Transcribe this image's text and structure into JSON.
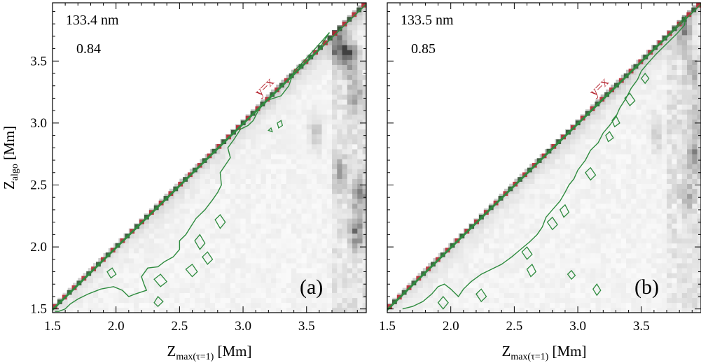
{
  "colors": {
    "contour": "#2e8b3e",
    "diagonal": "#b31e2a",
    "diagonal_label": "#b31e2a",
    "axis": "#000000",
    "background": "#ffffff"
  },
  "chart_data": [
    {
      "panel": "(a)",
      "type": "heatmap",
      "wavelength_label": "133.4 nm",
      "correlation_label": "0.84",
      "panel_label": "(a)",
      "line_label": "y=x",
      "xlabel": "Z",
      "xlabel_sub": "max(τ=1)",
      "xlabel_unit": " [Mm]",
      "ylabel": "Z",
      "ylabel_sub": "algo",
      "ylabel_unit": " [Mm]",
      "xlim": [
        1.5,
        3.97
      ],
      "ylim": [
        1.47,
        3.97
      ],
      "xticks": [
        "1.5",
        "2.0",
        "2.5",
        "3.0",
        "3.5"
      ],
      "yticks": [
        "1.5",
        "2.0",
        "2.5",
        "3.0",
        "3.5"
      ],
      "contour_level_description": "green contour",
      "contour_main": [
        [
          1.5,
          1.5
        ],
        [
          1.6,
          1.6
        ],
        [
          1.7,
          1.7
        ],
        [
          1.8,
          1.8
        ],
        [
          1.9,
          1.9
        ],
        [
          2.0,
          2.0
        ],
        [
          2.2,
          2.2
        ],
        [
          2.4,
          2.4
        ],
        [
          2.6,
          2.6
        ],
        [
          2.8,
          2.8
        ],
        [
          3.0,
          3.0
        ],
        [
          3.2,
          3.2
        ],
        [
          3.4,
          3.4
        ],
        [
          3.6,
          3.6
        ],
        [
          3.68,
          3.73
        ],
        [
          3.62,
          3.66
        ],
        [
          3.55,
          3.58
        ],
        [
          3.47,
          3.49
        ],
        [
          3.4,
          3.42
        ],
        [
          3.36,
          3.3
        ],
        [
          3.3,
          3.22
        ],
        [
          3.18,
          3.18
        ],
        [
          3.12,
          3.1
        ],
        [
          3.08,
          3.02
        ],
        [
          3.04,
          2.98
        ],
        [
          2.98,
          2.95
        ],
        [
          2.93,
          2.87
        ],
        [
          2.88,
          2.8
        ],
        [
          2.9,
          2.72
        ],
        [
          2.86,
          2.66
        ],
        [
          2.82,
          2.6
        ],
        [
          2.83,
          2.5
        ],
        [
          2.8,
          2.44
        ],
        [
          2.76,
          2.38
        ],
        [
          2.7,
          2.3
        ],
        [
          2.63,
          2.23
        ],
        [
          2.58,
          2.15
        ],
        [
          2.55,
          2.1
        ],
        [
          2.5,
          2.05
        ],
        [
          2.5,
          1.98
        ],
        [
          2.45,
          1.92
        ],
        [
          2.38,
          1.88
        ],
        [
          2.33,
          1.84
        ],
        [
          2.25,
          1.83
        ],
        [
          2.2,
          1.76
        ],
        [
          2.22,
          1.7
        ],
        [
          2.24,
          1.65
        ],
        [
          2.15,
          1.62
        ],
        [
          2.1,
          1.6
        ],
        [
          2.05,
          1.65
        ],
        [
          1.98,
          1.68
        ],
        [
          1.88,
          1.66
        ],
        [
          1.78,
          1.62
        ],
        [
          1.7,
          1.58
        ],
        [
          1.64,
          1.54
        ],
        [
          1.6,
          1.5
        ],
        [
          1.55,
          1.48
        ],
        [
          1.52,
          1.48
        ]
      ],
      "contour_islands": [
        [
          [
            3.27,
            3.0
          ],
          [
            3.3,
            3.02
          ],
          [
            3.31,
            2.98
          ],
          [
            3.28,
            2.96
          ],
          [
            3.27,
            3.0
          ]
        ],
        [
          [
            3.2,
            2.94
          ],
          [
            3.22,
            2.96
          ],
          [
            3.23,
            2.93
          ],
          [
            3.2,
            2.94
          ]
        ],
        [
          [
            2.78,
            2.22
          ],
          [
            2.82,
            2.26
          ],
          [
            2.86,
            2.2
          ],
          [
            2.82,
            2.15
          ],
          [
            2.78,
            2.22
          ]
        ],
        [
          [
            2.62,
            2.05
          ],
          [
            2.66,
            2.1
          ],
          [
            2.7,
            2.03
          ],
          [
            2.66,
            1.98
          ],
          [
            2.62,
            2.05
          ]
        ],
        [
          [
            2.68,
            1.92
          ],
          [
            2.72,
            1.96
          ],
          [
            2.76,
            1.9
          ],
          [
            2.72,
            1.86
          ],
          [
            2.68,
            1.92
          ]
        ],
        [
          [
            2.55,
            1.82
          ],
          [
            2.6,
            1.86
          ],
          [
            2.64,
            1.8
          ],
          [
            2.6,
            1.76
          ],
          [
            2.55,
            1.82
          ]
        ],
        [
          [
            2.3,
            1.74
          ],
          [
            2.35,
            1.78
          ],
          [
            2.4,
            1.72
          ],
          [
            2.35,
            1.68
          ],
          [
            2.3,
            1.74
          ]
        ],
        [
          [
            2.3,
            1.55
          ],
          [
            2.33,
            1.6
          ],
          [
            2.37,
            1.56
          ],
          [
            2.33,
            1.52
          ],
          [
            2.3,
            1.55
          ]
        ],
        [
          [
            1.93,
            1.8
          ],
          [
            1.97,
            1.83
          ],
          [
            2.0,
            1.78
          ],
          [
            1.96,
            1.75
          ],
          [
            1.93,
            1.8
          ]
        ]
      ],
      "density_hotspots": [
        [
          3.72,
          3.62,
          0.55
        ],
        [
          3.78,
          3.55,
          0.45
        ],
        [
          3.83,
          3.5,
          0.4
        ],
        [
          3.86,
          3.2,
          0.35
        ],
        [
          3.9,
          2.4,
          0.5
        ],
        [
          3.88,
          2.1,
          0.45
        ],
        [
          3.74,
          2.6,
          0.3
        ],
        [
          3.55,
          2.9,
          0.25
        ]
      ]
    },
    {
      "panel": "(b)",
      "type": "heatmap",
      "wavelength_label": "133.5 nm",
      "correlation_label": "0.85",
      "panel_label": "(b)",
      "line_label": "y=x",
      "xlabel": "Z",
      "xlabel_sub": "max(τ=1)",
      "xlabel_unit": " [Mm]",
      "xlim": [
        1.5,
        3.97
      ],
      "ylim": [
        1.47,
        3.97
      ],
      "xticks": [
        "1.5",
        "2.0",
        "2.5",
        "3.0",
        "3.5"
      ],
      "yticks": [
        "1.5",
        "2.0",
        "2.5",
        "3.0",
        "3.5"
      ],
      "contour_main": [
        [
          1.5,
          1.5
        ],
        [
          1.7,
          1.7
        ],
        [
          1.9,
          1.9
        ],
        [
          2.1,
          2.1
        ],
        [
          2.3,
          2.3
        ],
        [
          2.5,
          2.5
        ],
        [
          2.7,
          2.7
        ],
        [
          2.9,
          2.9
        ],
        [
          3.1,
          3.1
        ],
        [
          3.3,
          3.3
        ],
        [
          3.5,
          3.5
        ],
        [
          3.7,
          3.7
        ],
        [
          3.85,
          3.86
        ],
        [
          3.84,
          3.79
        ],
        [
          3.78,
          3.72
        ],
        [
          3.7,
          3.64
        ],
        [
          3.62,
          3.56
        ],
        [
          3.55,
          3.48
        ],
        [
          3.5,
          3.42
        ],
        [
          3.47,
          3.35
        ],
        [
          3.42,
          3.28
        ],
        [
          3.38,
          3.2
        ],
        [
          3.33,
          3.12
        ],
        [
          3.3,
          3.05
        ],
        [
          3.25,
          2.98
        ],
        [
          3.2,
          2.92
        ],
        [
          3.16,
          2.84
        ],
        [
          3.1,
          2.78
        ],
        [
          3.06,
          2.7
        ],
        [
          3.0,
          2.62
        ],
        [
          2.97,
          2.55
        ],
        [
          2.93,
          2.5
        ],
        [
          2.9,
          2.44
        ],
        [
          2.86,
          2.37
        ],
        [
          2.8,
          2.3
        ],
        [
          2.75,
          2.24
        ],
        [
          2.72,
          2.16
        ],
        [
          2.68,
          2.1
        ],
        [
          2.62,
          2.04
        ],
        [
          2.55,
          1.98
        ],
        [
          2.48,
          1.92
        ],
        [
          2.4,
          1.86
        ],
        [
          2.32,
          1.82
        ],
        [
          2.24,
          1.78
        ],
        [
          2.16,
          1.72
        ],
        [
          2.1,
          1.66
        ],
        [
          2.06,
          1.6
        ],
        [
          2.0,
          1.66
        ],
        [
          1.95,
          1.7
        ],
        [
          1.9,
          1.68
        ],
        [
          1.85,
          1.62
        ],
        [
          1.78,
          1.56
        ],
        [
          1.7,
          1.52
        ],
        [
          1.62,
          1.5
        ]
      ],
      "contour_islands": [
        [
          [
            3.5,
            3.36
          ],
          [
            3.53,
            3.4
          ],
          [
            3.56,
            3.36
          ],
          [
            3.53,
            3.32
          ],
          [
            3.5,
            3.36
          ]
        ],
        [
          [
            3.37,
            3.2
          ],
          [
            3.41,
            3.24
          ],
          [
            3.45,
            3.18
          ],
          [
            3.41,
            3.14
          ],
          [
            3.37,
            3.2
          ]
        ],
        [
          [
            3.27,
            3.02
          ],
          [
            3.3,
            3.06
          ],
          [
            3.33,
            3.0
          ],
          [
            3.29,
            2.97
          ],
          [
            3.27,
            3.02
          ]
        ],
        [
          [
            3.22,
            2.9
          ],
          [
            3.25,
            2.93
          ],
          [
            3.28,
            2.88
          ],
          [
            3.24,
            2.85
          ],
          [
            3.22,
            2.9
          ]
        ],
        [
          [
            3.06,
            2.6
          ],
          [
            3.1,
            2.64
          ],
          [
            3.14,
            2.58
          ],
          [
            3.1,
            2.54
          ],
          [
            3.06,
            2.6
          ]
        ],
        [
          [
            2.86,
            2.3
          ],
          [
            2.9,
            2.34
          ],
          [
            2.93,
            2.28
          ],
          [
            2.89,
            2.24
          ],
          [
            2.86,
            2.3
          ]
        ],
        [
          [
            2.76,
            2.2
          ],
          [
            2.8,
            2.24
          ],
          [
            2.84,
            2.18
          ],
          [
            2.8,
            2.14
          ],
          [
            2.76,
            2.2
          ]
        ],
        [
          [
            2.56,
            1.96
          ],
          [
            2.6,
            2.0
          ],
          [
            2.64,
            1.94
          ],
          [
            2.6,
            1.9
          ],
          [
            2.56,
            1.96
          ]
        ],
        [
          [
            2.6,
            1.82
          ],
          [
            2.64,
            1.86
          ],
          [
            2.67,
            1.8
          ],
          [
            2.63,
            1.76
          ],
          [
            2.6,
            1.82
          ]
        ],
        [
          [
            2.2,
            1.62
          ],
          [
            2.24,
            1.66
          ],
          [
            2.28,
            1.6
          ],
          [
            2.24,
            1.56
          ],
          [
            2.2,
            1.62
          ]
        ],
        [
          [
            1.9,
            1.55
          ],
          [
            1.94,
            1.6
          ],
          [
            1.98,
            1.55
          ],
          [
            1.94,
            1.5
          ],
          [
            1.9,
            1.55
          ]
        ],
        [
          [
            3.12,
            1.66
          ],
          [
            3.15,
            1.7
          ],
          [
            3.18,
            1.65
          ],
          [
            3.15,
            1.61
          ],
          [
            3.12,
            1.66
          ]
        ],
        [
          [
            2.92,
            1.78
          ],
          [
            2.95,
            1.81
          ],
          [
            2.98,
            1.77
          ],
          [
            2.95,
            1.74
          ],
          [
            2.92,
            1.78
          ]
        ]
      ],
      "density_hotspots": [
        [
          3.82,
          3.7,
          0.4
        ],
        [
          3.88,
          3.4,
          0.3
        ],
        [
          3.92,
          3.0,
          0.3
        ],
        [
          3.9,
          2.7,
          0.35
        ],
        [
          3.85,
          2.4,
          0.25
        ],
        [
          3.6,
          2.9,
          0.2
        ]
      ]
    }
  ]
}
